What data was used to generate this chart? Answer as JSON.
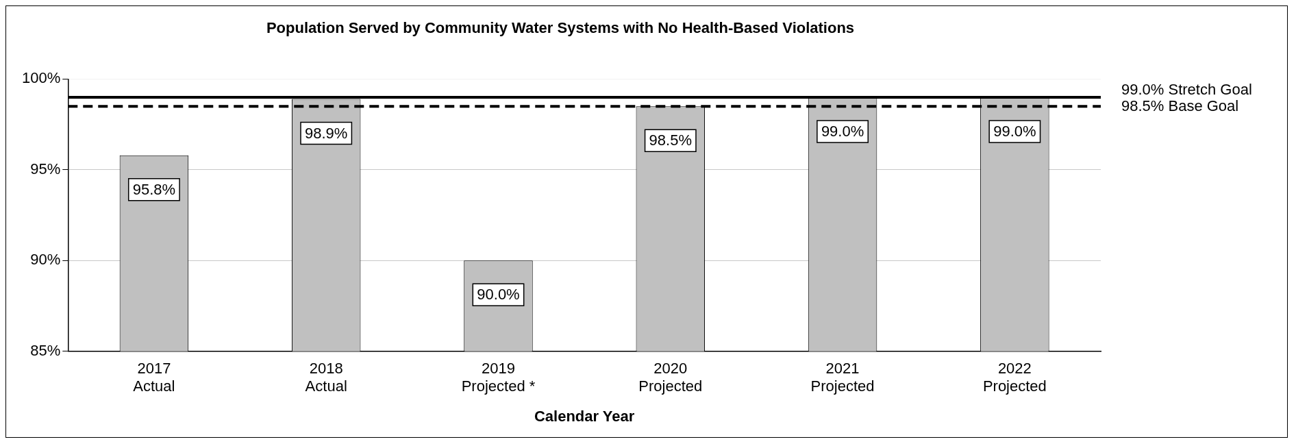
{
  "chart_data": {
    "type": "bar",
    "title": "Population Served by Community Water Systems with No Health-Based Violations",
    "xlabel": "Calendar Year",
    "categories": [
      "2017\nActual",
      "2018\nActual",
      "2019\nProjected *",
      "2020\nProjected",
      "2021\nProjected",
      "2022\nProjected"
    ],
    "values": [
      95.8,
      98.9,
      90.0,
      98.5,
      99.0,
      99.0
    ],
    "value_labels": [
      "95.8%",
      "98.9%",
      "90.0%",
      "98.5%",
      "99.0%",
      "99.0%"
    ],
    "color": "#c0c0c0",
    "ylim": [
      85,
      100
    ],
    "yticks": [
      {
        "value": 85,
        "label": "85%"
      },
      {
        "value": 90,
        "label": "90%"
      },
      {
        "value": 95,
        "label": "95%"
      },
      {
        "value": 100,
        "label": "100%"
      }
    ],
    "ref_lines": [
      {
        "axis": "y",
        "value": 99.0,
        "label": "99.0% Stretch Goal",
        "color": "#000000",
        "line_style": "solid"
      },
      {
        "axis": "y",
        "value": 98.5,
        "label": "98.5% Base Goal",
        "color": "#000000",
        "line_style": "dashed"
      }
    ],
    "grid": "y",
    "legend": false
  }
}
